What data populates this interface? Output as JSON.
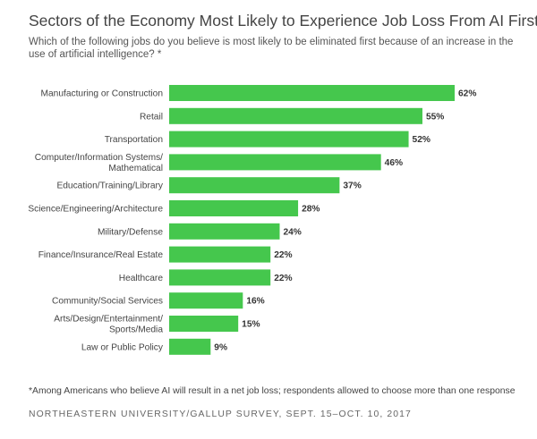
{
  "chart_data": {
    "type": "bar",
    "orientation": "horizontal",
    "title": "Sectors of the Economy Most Likely to Experience Job Loss From AI First",
    "subtitle": "Which of the following jobs do you believe is most likely to be eliminated first because of an increase in the use of artificial intelligence? *",
    "categories": [
      [
        "Manufacturing or Construction"
      ],
      [
        "Retail"
      ],
      [
        "Transportation"
      ],
      [
        "Computer/Information Systems/",
        "Mathematical"
      ],
      [
        "Education/Training/Library"
      ],
      [
        "Science/Engineering/Architecture"
      ],
      [
        "Military/Defense"
      ],
      [
        "Finance/Insurance/Real Estate"
      ],
      [
        "Healthcare"
      ],
      [
        "Community/Social Services"
      ],
      [
        "Arts/Design/Entertainment/",
        "Sports/Media"
      ],
      [
        "Law or Public Policy"
      ]
    ],
    "values": [
      62,
      55,
      52,
      46,
      37,
      28,
      24,
      22,
      22,
      16,
      15,
      9
    ],
    "value_labels": [
      "62%",
      "55%",
      "52%",
      "46%",
      "37%",
      "28%",
      "24%",
      "22%",
      "22%",
      "16%",
      "15%",
      "9%"
    ],
    "unit": "%",
    "bar_color": "#45c74d",
    "xlim": [
      0,
      62
    ],
    "grid": false,
    "legend": "none"
  },
  "footnote": "*Among Americans who believe AI will result in a net job loss; respondents allowed to choose more than one response",
  "source": "NORTHEASTERN UNIVERSITY/GALLUP SURVEY, SEPT. 15–OCT. 10, 2017"
}
